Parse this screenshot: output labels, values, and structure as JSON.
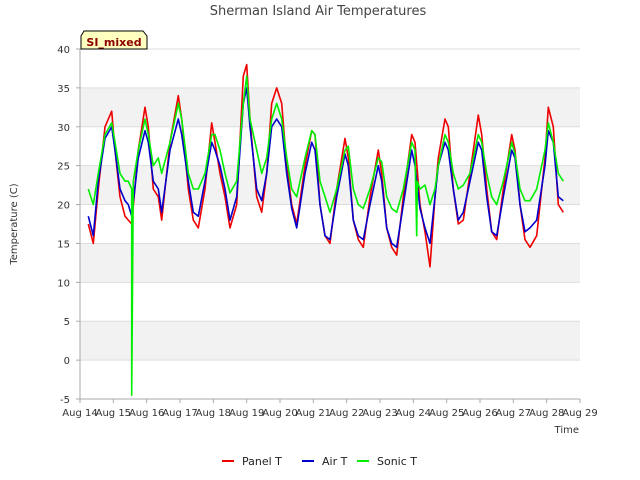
{
  "chart_data": {
    "type": "line",
    "title": "Sherman Island Air Temperatures",
    "xlabel": "Time",
    "ylabel": "Temperature (C)",
    "badge": "SI_mixed",
    "ylim": [
      -5,
      40
    ],
    "yticks": [
      -5,
      0,
      5,
      10,
      15,
      20,
      25,
      30,
      35,
      40
    ],
    "xlim": [
      14,
      29
    ],
    "xticks": [
      14,
      15,
      16,
      17,
      18,
      19,
      20,
      21,
      22,
      23,
      24,
      25,
      26,
      27,
      28,
      29
    ],
    "xtick_labels": [
      "Aug 14",
      "Aug 15",
      "Aug 16",
      "Aug 17",
      "Aug 18",
      "Aug 19",
      "Aug 20",
      "Aug 21",
      "Aug 22",
      "Aug 23",
      "Aug 24",
      "Aug 25",
      "Aug 26",
      "Aug 27",
      "Aug 28",
      "Aug 29"
    ],
    "grid": true,
    "band_shading": true,
    "legend_position": "bottom-center",
    "series": [
      {
        "name": "Panel T",
        "color": "#ee0000",
        "x": [
          14.25,
          14.4,
          14.55,
          14.75,
          14.95,
          15.05,
          15.2,
          15.35,
          15.45,
          15.55,
          15.75,
          15.95,
          16.05,
          16.2,
          16.35,
          16.45,
          16.7,
          16.95,
          17.05,
          17.25,
          17.4,
          17.55,
          17.75,
          17.95,
          18.05,
          18.2,
          18.35,
          18.5,
          18.7,
          18.9,
          19.0,
          19.1,
          19.3,
          19.45,
          19.6,
          19.75,
          19.9,
          20.05,
          20.2,
          20.35,
          20.5,
          20.75,
          20.95,
          21.05,
          21.2,
          21.35,
          21.5,
          21.7,
          21.95,
          22.05,
          22.2,
          22.35,
          22.5,
          22.7,
          22.95,
          23.05,
          23.2,
          23.35,
          23.5,
          23.7,
          23.95,
          24.05,
          24.2,
          24.35,
          24.5,
          24.65,
          24.75,
          24.95,
          25.05,
          25.2,
          25.35,
          25.5,
          25.7,
          25.95,
          26.05,
          26.2,
          26.35,
          26.5,
          26.7,
          26.95,
          27.05,
          27.2,
          27.35,
          27.5,
          27.7,
          27.95,
          28.05,
          28.2,
          28.35,
          28.5
        ],
        "y": [
          17.5,
          15.0,
          22.0,
          30.0,
          32.0,
          27.0,
          21.0,
          18.5,
          18.0,
          17.5,
          27.0,
          32.5,
          30.0,
          22.0,
          21.0,
          18.0,
          28.0,
          34.0,
          31.0,
          22.0,
          18.0,
          17.0,
          22.0,
          30.5,
          28.0,
          24.0,
          21.0,
          17.0,
          20.0,
          36.5,
          38.0,
          31.0,
          21.0,
          19.0,
          24.0,
          33.0,
          35.0,
          33.0,
          25.0,
          20.0,
          17.5,
          25.0,
          29.5,
          29.0,
          20.0,
          16.0,
          15.0,
          22.0,
          28.5,
          26.0,
          18.0,
          15.5,
          14.5,
          21.0,
          27.0,
          24.0,
          17.0,
          14.5,
          13.5,
          21.0,
          29.0,
          28.0,
          20.0,
          16.5,
          12.0,
          21.0,
          26.0,
          31.0,
          30.0,
          22.0,
          17.5,
          18.0,
          24.0,
          31.5,
          29.0,
          22.0,
          16.5,
          15.5,
          22.0,
          29.0,
          27.0,
          20.0,
          15.5,
          14.5,
          16.0,
          26.0,
          32.5,
          30.0,
          20.0,
          19.0
        ]
      },
      {
        "name": "Air T",
        "color": "#0000cc",
        "x": [
          14.25,
          14.4,
          14.55,
          14.75,
          14.95,
          15.05,
          15.2,
          15.35,
          15.45,
          15.55,
          15.75,
          15.95,
          16.05,
          16.2,
          16.35,
          16.45,
          16.7,
          16.95,
          17.05,
          17.25,
          17.4,
          17.55,
          17.75,
          17.95,
          18.05,
          18.2,
          18.35,
          18.5,
          18.7,
          18.9,
          19.0,
          19.1,
          19.3,
          19.45,
          19.6,
          19.75,
          19.9,
          20.05,
          20.2,
          20.35,
          20.5,
          20.75,
          20.95,
          21.05,
          21.2,
          21.35,
          21.5,
          21.7,
          21.95,
          22.05,
          22.2,
          22.35,
          22.5,
          22.7,
          22.95,
          23.05,
          23.2,
          23.35,
          23.5,
          23.7,
          23.95,
          24.05,
          24.2,
          24.35,
          24.5,
          24.65,
          24.75,
          24.95,
          25.05,
          25.2,
          25.35,
          25.5,
          25.7,
          25.95,
          26.05,
          26.2,
          26.35,
          26.5,
          26.7,
          26.95,
          27.05,
          27.2,
          27.35,
          27.5,
          27.7,
          27.95,
          28.05,
          28.2,
          28.35,
          28.5
        ],
        "y": [
          18.5,
          16.0,
          23.0,
          28.5,
          30.0,
          27.0,
          22.0,
          20.5,
          20.0,
          18.5,
          26.0,
          29.5,
          28.0,
          23.0,
          22.0,
          19.0,
          27.0,
          31.0,
          29.0,
          23.0,
          19.0,
          18.5,
          23.0,
          28.0,
          27.0,
          25.0,
          22.0,
          18.0,
          21.0,
          33.0,
          35.0,
          30.0,
          22.0,
          20.5,
          24.0,
          30.0,
          31.0,
          30.0,
          24.0,
          19.5,
          17.0,
          24.0,
          28.0,
          27.0,
          20.0,
          16.0,
          15.5,
          21.0,
          26.5,
          25.0,
          18.0,
          16.0,
          15.5,
          20.0,
          25.0,
          23.0,
          17.0,
          15.0,
          14.5,
          20.0,
          27.0,
          25.0,
          19.5,
          17.0,
          15.0,
          21.0,
          25.0,
          28.0,
          27.0,
          22.0,
          18.0,
          19.0,
          23.0,
          28.0,
          27.0,
          21.0,
          16.5,
          16.0,
          21.0,
          27.0,
          26.0,
          20.0,
          16.5,
          17.0,
          18.0,
          25.0,
          29.5,
          28.0,
          21.0,
          20.5
        ]
      },
      {
        "name": "Sonic T",
        "color": "#00ee00",
        "x": [
          14.25,
          14.4,
          14.55,
          14.75,
          14.95,
          15.05,
          15.2,
          15.35,
          15.45,
          15.55,
          15.55,
          15.6,
          15.75,
          15.95,
          16.05,
          16.2,
          16.35,
          16.45,
          16.7,
          16.95,
          17.05,
          17.25,
          17.4,
          17.55,
          17.75,
          17.95,
          18.05,
          18.2,
          18.35,
          18.5,
          18.7,
          18.9,
          19.0,
          19.1,
          19.3,
          19.45,
          19.6,
          19.75,
          19.9,
          20.05,
          20.2,
          20.35,
          20.5,
          20.75,
          20.95,
          21.05,
          21.2,
          21.35,
          21.5,
          21.7,
          21.95,
          22.05,
          22.2,
          22.35,
          22.5,
          22.7,
          22.95,
          23.05,
          23.2,
          23.35,
          23.5,
          23.7,
          23.95,
          24.05,
          24.1,
          24.12,
          24.2,
          24.35,
          24.5,
          24.65,
          24.75,
          24.95,
          25.05,
          25.2,
          25.35,
          25.5,
          25.7,
          25.95,
          26.05,
          26.2,
          26.35,
          26.5,
          26.7,
          26.95,
          27.05,
          27.2,
          27.35,
          27.5,
          27.7,
          27.95,
          28.05,
          28.2,
          28.35,
          28.5
        ],
        "y": [
          22.0,
          20.0,
          24.0,
          29.0,
          30.5,
          28.0,
          24.0,
          23.0,
          23.0,
          22.0,
          -4.5,
          23.0,
          27.0,
          31.0,
          29.0,
          25.0,
          26.0,
          24.0,
          28.0,
          33.0,
          31.0,
          24.0,
          22.0,
          22.0,
          24.0,
          29.0,
          29.0,
          27.0,
          24.0,
          21.5,
          23.0,
          33.0,
          36.5,
          31.0,
          27.0,
          24.0,
          26.0,
          31.0,
          33.0,
          31.0,
          26.0,
          22.0,
          21.0,
          26.0,
          29.5,
          29.0,
          23.0,
          21.0,
          19.0,
          22.0,
          27.0,
          27.5,
          22.0,
          20.0,
          19.5,
          22.0,
          26.0,
          25.5,
          21.0,
          19.5,
          19.0,
          22.0,
          28.0,
          27.0,
          16.0,
          23.0,
          22.0,
          22.5,
          20.0,
          22.0,
          25.0,
          29.0,
          28.0,
          24.0,
          22.0,
          22.5,
          24.0,
          29.0,
          28.0,
          24.0,
          21.0,
          20.0,
          23.0,
          28.0,
          26.5,
          22.0,
          20.5,
          20.5,
          22.0,
          27.0,
          30.5,
          28.0,
          24.0,
          23.0
        ]
      }
    ]
  }
}
